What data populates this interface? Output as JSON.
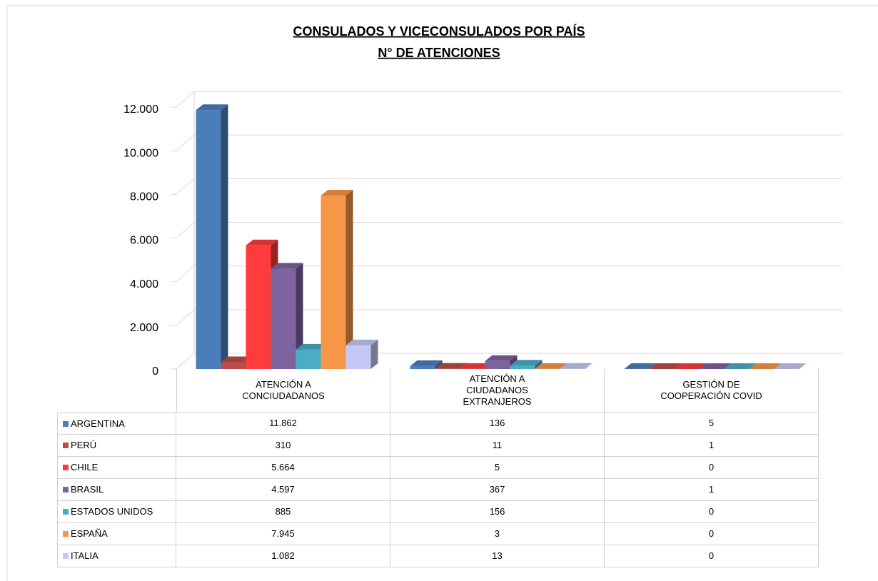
{
  "chart_data": {
    "type": "bar3d",
    "title": "CONSULADOS Y VICECONSULADOS POR PAÍS",
    "subtitle": "N° DE ATENCIONES",
    "categories": [
      "ATENCIÓN A CONCIUDADANOS",
      "ATENCIÓN A CIUDADANOS EXTRANJEROS",
      "GESTIÓN DE COOPERACIÓN COVID"
    ],
    "series": [
      {
        "name": "ARGENTINA",
        "color": "#4a7ebb",
        "values": [
          11862,
          136,
          5
        ],
        "value_labels": [
          "11.862",
          "136",
          "5"
        ]
      },
      {
        "name": "PERÚ",
        "color": "#be4b48",
        "values": [
          310,
          11,
          1
        ],
        "value_labels": [
          "310",
          "11",
          "1"
        ]
      },
      {
        "name": "CHILE",
        "color": "#ff3b3b",
        "values": [
          5664,
          5,
          0
        ],
        "value_labels": [
          "5.664",
          "5",
          "0"
        ]
      },
      {
        "name": "BRASIL",
        "color": "#7f63a1",
        "values": [
          4597,
          367,
          1
        ],
        "value_labels": [
          "4.597",
          "367",
          "1"
        ]
      },
      {
        "name": "ESTADOS UNIDOS",
        "color": "#4bacc6",
        "values": [
          885,
          156,
          0
        ],
        "value_labels": [
          "885",
          "156",
          "0"
        ]
      },
      {
        "name": "ESPAÑA",
        "color": "#f79646",
        "values": [
          7945,
          3,
          0
        ],
        "value_labels": [
          "7.945",
          "3",
          "0"
        ]
      },
      {
        "name": "ITALIA",
        "color": "#c5c8f5",
        "values": [
          1082,
          13,
          0
        ],
        "value_labels": [
          "1.082",
          "13",
          "0"
        ]
      }
    ],
    "ylim": [
      0,
      12000
    ],
    "yticks": [
      0,
      {
        "value": 2000,
        "label": "2.000"
      },
      {
        "value": 4000,
        "label": "4.000"
      },
      {
        "value": 6000,
        "label": "6.000"
      },
      {
        "value": 8000,
        "label": "8.000"
      },
      {
        "value": 10000,
        "label": "10.000"
      },
      {
        "value": 12000,
        "label": "12.000"
      }
    ],
    "grid": true
  }
}
